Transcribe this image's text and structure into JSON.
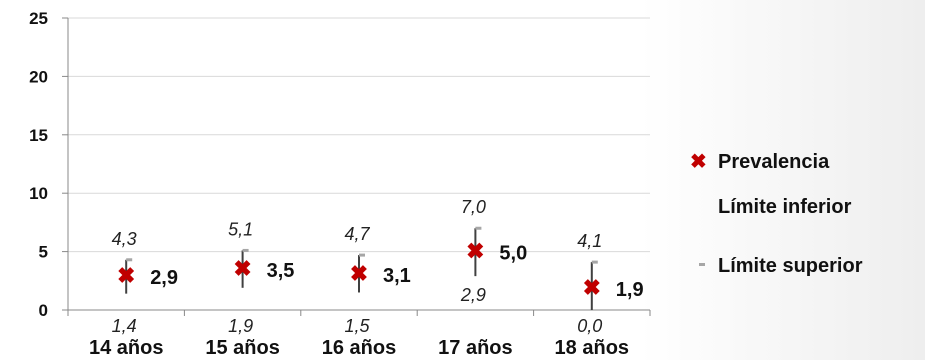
{
  "chart_data": {
    "type": "scatter",
    "categories": [
      "14 años",
      "15 años",
      "16 años",
      "17 años",
      "18 años"
    ],
    "series": [
      {
        "name": "Prevalencia",
        "values": [
          2.9,
          3.5,
          3.1,
          5.0,
          1.9
        ],
        "labels": [
          "2,9",
          "3,5",
          "3,1",
          "5,0",
          "1,9"
        ]
      },
      {
        "name": "Límite inferior",
        "values": [
          1.4,
          1.9,
          1.5,
          2.9,
          0.0
        ],
        "labels": [
          "1,4",
          "1,9",
          "1,5",
          "2,9",
          "0,0"
        ]
      },
      {
        "name": "Límite superior",
        "values": [
          4.3,
          5.1,
          4.7,
          7.0,
          4.1
        ],
        "labels": [
          "4,3",
          "5,1",
          "4,7",
          "7,0",
          "4,1"
        ]
      }
    ],
    "ylim": [
      0,
      25
    ],
    "yticks": [
      "0",
      "5",
      "10",
      "15",
      "20",
      "25"
    ],
    "grid": true,
    "legend_position": "right",
    "colors": {
      "prevalencia": "#C00000",
      "interval": "#404040",
      "upper_cap": "#A6A6A6",
      "grid": "#D9D9D9"
    }
  }
}
